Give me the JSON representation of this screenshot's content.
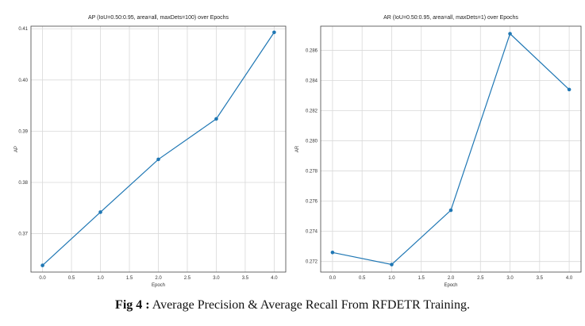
{
  "chart_data": [
    {
      "type": "line",
      "title": "AP (IoU=0.50:0.95, area=all, maxDets=100) over Epochs",
      "xlabel": "Epoch",
      "ylabel": "AP",
      "x": [
        0,
        1,
        2,
        3,
        4
      ],
      "series": [
        {
          "values": [
            0.3638,
            0.3742,
            0.3845,
            0.3924,
            0.4093
          ]
        }
      ],
      "xlim": [
        -0.2,
        4.2
      ],
      "ylim": [
        0.3625,
        0.4105
      ],
      "xticks": [
        "0.0",
        "0.5",
        "1.0",
        "1.5",
        "2.0",
        "2.5",
        "3.0",
        "3.5",
        "4.0"
      ],
      "yticks": [
        "0.37",
        "0.38",
        "0.39",
        "0.40",
        "0.41"
      ],
      "grid": true,
      "color": "#1f77b4"
    },
    {
      "type": "line",
      "title": "AR (IoU=0.50:0.95, area=all, maxDets=1) over Epochs",
      "xlabel": "Epoch",
      "ylabel": "AR",
      "x": [
        0,
        1,
        2,
        3,
        4
      ],
      "series": [
        {
          "values": [
            0.2726,
            0.2718,
            0.2754,
            0.2871,
            0.2834
          ]
        }
      ],
      "xlim": [
        -0.2,
        4.2
      ],
      "ylim": [
        0.2713,
        0.2876
      ],
      "xticks": [
        "0.0",
        "0.5",
        "1.0",
        "1.5",
        "2.0",
        "2.5",
        "3.0",
        "3.5",
        "4.0"
      ],
      "yticks": [
        "0.272",
        "0.274",
        "0.276",
        "0.278",
        "0.280",
        "0.282",
        "0.284",
        "0.286"
      ],
      "grid": true,
      "color": "#1f77b4"
    }
  ],
  "caption": {
    "label": "Fig 4 :",
    "text": " Average Precision & Average Recall From RFDETR Training."
  }
}
